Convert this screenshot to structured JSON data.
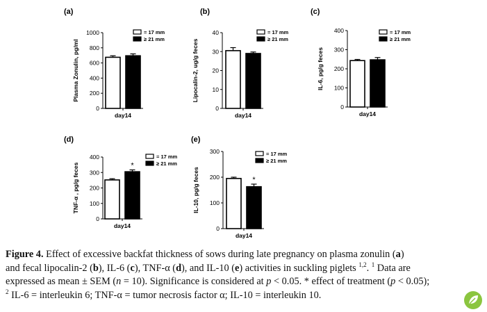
{
  "legend": {
    "item1": "= 17 mm",
    "item2": "≥ 21 mm"
  },
  "colors": {
    "bar1": "#ffffff",
    "bar2": "#000000",
    "logo": "#8bc53f"
  },
  "chart_data": [
    {
      "label": "(a)",
      "type": "bar",
      "ylabel": "Plasma Zonulin, pg/ml",
      "xlabel": "day14",
      "ylim": [
        0,
        1000
      ],
      "ticks": [
        0,
        200,
        400,
        600,
        800,
        1000
      ],
      "series": [
        {
          "name": "= 17 mm",
          "value": 675,
          "err": 20
        },
        {
          "name": "≥ 21 mm",
          "value": 695,
          "err": 25
        }
      ],
      "sig": ""
    },
    {
      "label": "(b)",
      "type": "bar",
      "ylabel": "Lipocalin-2, ug/g feces",
      "xlabel": "day14",
      "ylim": [
        0,
        40
      ],
      "ticks": [
        0,
        10,
        20,
        30,
        40
      ],
      "series": [
        {
          "name": "= 17 mm",
          "value": 30.5,
          "err": 1.6
        },
        {
          "name": "≥ 21 mm",
          "value": 29,
          "err": 0.8
        }
      ],
      "sig": ""
    },
    {
      "label": "(c)",
      "type": "bar",
      "ylabel": "IL-6, pg/g feces",
      "xlabel": "day14",
      "ylim": [
        0,
        400
      ],
      "ticks": [
        0,
        100,
        200,
        300,
        400
      ],
      "series": [
        {
          "name": "= 17 mm",
          "value": 243,
          "err": 6
        },
        {
          "name": "≥ 21 mm",
          "value": 247,
          "err": 12
        }
      ],
      "sig": ""
    },
    {
      "label": "(d)",
      "type": "bar",
      "ylabel": "TNF-α , pg/g feces",
      "xlabel": "day14",
      "ylim": [
        0,
        400
      ],
      "ticks": [
        0,
        100,
        200,
        300,
        400
      ],
      "series": [
        {
          "name": "= 17 mm",
          "value": 252,
          "err": 8
        },
        {
          "name": "≥ 21 mm",
          "value": 305,
          "err": 12
        }
      ],
      "sig": "*"
    },
    {
      "label": "(e)",
      "type": "bar",
      "ylabel": "IL-10, pg/g feces",
      "xlabel": "day14",
      "ylim": [
        0,
        300
      ],
      "ticks": [
        0,
        100,
        200,
        300
      ],
      "series": [
        {
          "name": "= 17 mm",
          "value": 195,
          "err": 5
        },
        {
          "name": "≥ 21 mm",
          "value": 163,
          "err": 10
        }
      ],
      "sig": "*"
    }
  ],
  "caption": {
    "figure_label": "Figure 4.",
    "lines": [
      "Effect of excessive backfat thickness of sows during late pregnancy on plasma zonulin (a)",
      "and fecal lipocalin-2 (b), IL-6 (c), TNF-α (d), and IL-10 (e) activities in suckling piglets 1,2. 1 Data are",
      "expressed as mean ± SEM (n = 10). Significance is considered at p < 0.05. * effect of treatment (p < 0.05);",
      "2 IL-6 = interleukin 6; TNF-α = tumor necrosis factor α; IL-10 = interleukin 10."
    ]
  }
}
